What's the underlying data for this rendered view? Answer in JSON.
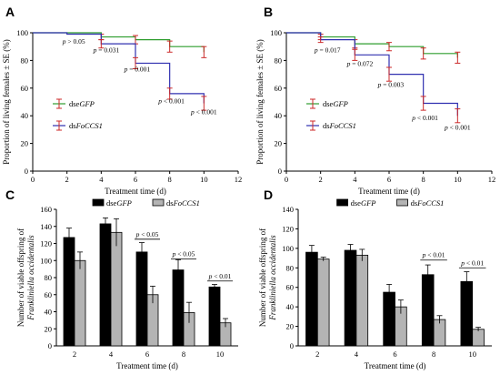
{
  "chart_data": [
    {
      "letter": "A",
      "type": "line",
      "step": true,
      "xlabel": "Treatment time (d)",
      "ylabel": "Proportion of living females ± SE (%)",
      "xlim": [
        0,
        12
      ],
      "ylim": [
        0,
        100
      ],
      "xticks": [
        0,
        2,
        4,
        6,
        8,
        10,
        12
      ],
      "yticks": [
        0,
        20,
        40,
        60,
        80,
        100
      ],
      "colors": {
        "dseGFP": "#2e9d2e",
        "dsFoCCS1": "#3030b0",
        "error": "#cc2a2a"
      },
      "legend_position": "center-left",
      "series": [
        {
          "name": "dseGFP",
          "italic_part": "GFP",
          "x": [
            0,
            2,
            4,
            6,
            8,
            10
          ],
          "y": [
            100,
            100,
            97,
            95,
            90,
            86
          ],
          "se": [
            0,
            0,
            2,
            3,
            4,
            4
          ]
        },
        {
          "name": "dsFoCCS1",
          "italic_part": "FoCCS1",
          "x": [
            0,
            2,
            4,
            6,
            8,
            10
          ],
          "y": [
            100,
            99,
            92,
            78,
            56,
            49
          ],
          "se": [
            0,
            0,
            3,
            4,
            4,
            5
          ]
        }
      ],
      "annotations": [
        {
          "text": "p > 0.05",
          "x": 2.4,
          "y": 92
        },
        {
          "text": "p = 0.031",
          "x": 4.3,
          "y": 86
        },
        {
          "text": "p = 0.001",
          "x": 6.1,
          "y": 72
        },
        {
          "text": "p < 0.001",
          "x": 8.1,
          "y": 49
        },
        {
          "text": "p < 0.001",
          "x": 10.0,
          "y": 41
        }
      ]
    },
    {
      "letter": "B",
      "type": "line",
      "step": true,
      "xlabel": "Treatment time (d)",
      "ylabel": "Proportion of living females ± SE (%)",
      "xlim": [
        0,
        12
      ],
      "ylim": [
        0,
        100
      ],
      "xticks": [
        0,
        2,
        4,
        6,
        8,
        10,
        12
      ],
      "yticks": [
        0,
        20,
        40,
        60,
        80,
        100
      ],
      "colors": {
        "dseGFP": "#2e9d2e",
        "dsFoCCS1": "#3030b0",
        "error": "#cc2a2a"
      },
      "legend_position": "center-left",
      "series": [
        {
          "name": "dseGFP",
          "italic_part": "GFP",
          "x": [
            0,
            2,
            4,
            6,
            8,
            10
          ],
          "y": [
            100,
            97,
            92,
            90,
            85,
            82
          ],
          "se": [
            0,
            2,
            3,
            3,
            4,
            4
          ]
        },
        {
          "name": "dsFoCCS1",
          "italic_part": "FoCCS1",
          "x": [
            0,
            2,
            4,
            6,
            8,
            10
          ],
          "y": [
            100,
            95,
            84,
            70,
            49,
            40
          ],
          "se": [
            0,
            2,
            4,
            5,
            5,
            5
          ]
        }
      ],
      "annotations": [
        {
          "text": "p = 0.017",
          "x": 2.4,
          "y": 86
        },
        {
          "text": "p = 0.072",
          "x": 4.3,
          "y": 76
        },
        {
          "text": "p = 0.003",
          "x": 6.1,
          "y": 61
        },
        {
          "text": "p < 0.001",
          "x": 8.1,
          "y": 37
        },
        {
          "text": "p < 0.001",
          "x": 10.0,
          "y": 30
        }
      ]
    },
    {
      "letter": "C",
      "type": "bar",
      "xlabel": "Treatment time (d)",
      "ylabel_line1": "Number of viable offspring of",
      "ylabel_line2": "Frankliniella occidentalis",
      "categories": [
        "2",
        "4",
        "6",
        "8",
        "10"
      ],
      "ylim": [
        0,
        160
      ],
      "yticks": [
        0,
        20,
        40,
        60,
        80,
        100,
        120,
        140,
        160
      ],
      "colors": {
        "dseGFP": "#000000",
        "dsFoCCS1": "#b4b4b4"
      },
      "legend_position": "top",
      "series": [
        {
          "name": "dseGFP",
          "italic_part": "GFP",
          "values": [
            127,
            143,
            110,
            89,
            69
          ],
          "err": [
            11,
            7,
            11,
            12,
            3
          ]
        },
        {
          "name": "dsFoCCS1",
          "italic_part": "FoCCS1",
          "values": [
            100,
            133,
            60,
            39,
            27
          ],
          "err": [
            10,
            16,
            10,
            12,
            5
          ]
        }
      ],
      "significance": [
        {
          "category": "6",
          "text": "p < 0.05",
          "y": 125
        },
        {
          "category": "8",
          "text": "p < 0.05",
          "y": 102
        },
        {
          "category": "10",
          "text": "p < 0.01",
          "y": 76
        }
      ]
    },
    {
      "letter": "D",
      "type": "bar",
      "xlabel": "Treatment time (d)",
      "ylabel_line1": "Number of viable offspring of",
      "ylabel_line2": "Frankliniella occidentalis",
      "categories": [
        "2",
        "4",
        "6",
        "8",
        "10"
      ],
      "ylim": [
        0,
        140
      ],
      "yticks": [
        0,
        20,
        40,
        60,
        80,
        100,
        120,
        140
      ],
      "colors": {
        "dseGFP": "#000000",
        "dsFoCCS1": "#b4b4b4"
      },
      "legend_position": "top",
      "series": [
        {
          "name": "dseGFP",
          "italic_part": "GFP",
          "values": [
            96,
            98,
            55,
            73,
            66
          ],
          "err": [
            7,
            6,
            8,
            10,
            10
          ]
        },
        {
          "name": "dsFoCCS1",
          "italic_part": "FoCCS1",
          "values": [
            89,
            93,
            40,
            27,
            17
          ],
          "err": [
            2,
            6,
            7,
            4,
            2
          ]
        }
      ],
      "significance": [
        {
          "category": "8",
          "text": "p < 0.01",
          "y": 88
        },
        {
          "category": "10",
          "text": "p < 0.01",
          "y": 80
        }
      ]
    }
  ]
}
